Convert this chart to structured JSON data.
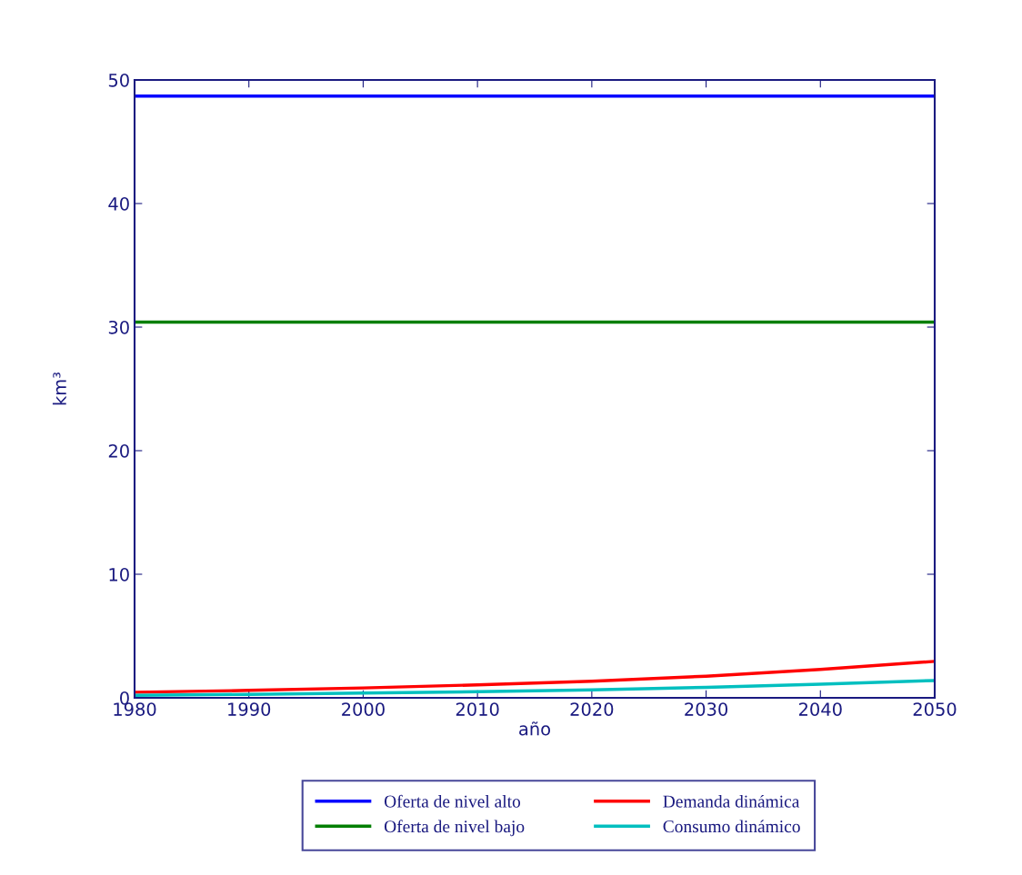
{
  "chart_data": {
    "type": "line",
    "xlabel": "año",
    "ylabel": "km³",
    "x": [
      1980,
      1990,
      2000,
      2010,
      2020,
      2030,
      2040,
      2050
    ],
    "series": [
      {
        "name": "Oferta de nivel alto",
        "color": "#0000ff",
        "values": [
          48.7,
          48.7,
          48.7,
          48.7,
          48.7,
          48.7,
          48.7,
          48.7
        ]
      },
      {
        "name": "Oferta de nivel bajo",
        "color": "#007f00",
        "values": [
          30.4,
          30.4,
          30.4,
          30.4,
          30.4,
          30.4,
          30.4,
          30.4
        ]
      },
      {
        "name": "Demanda dinámica",
        "color": "#ff0000",
        "values": [
          0.45,
          0.6,
          0.8,
          1.05,
          1.35,
          1.75,
          2.3,
          2.95
        ]
      },
      {
        "name": "Consumo dinámico",
        "color": "#00bfbf",
        "values": [
          0.2,
          0.28,
          0.38,
          0.5,
          0.65,
          0.85,
          1.1,
          1.4
        ]
      }
    ],
    "xlim": [
      1980,
      2050
    ],
    "xticks": [
      1980,
      1990,
      2000,
      2010,
      2020,
      2030,
      2040,
      2050
    ],
    "ylim": [
      0,
      50
    ],
    "yticks": [
      0,
      10,
      20,
      30,
      40,
      50
    ],
    "grid": false,
    "legend": "bottom",
    "marker": "none",
    "line_style": "solid"
  }
}
